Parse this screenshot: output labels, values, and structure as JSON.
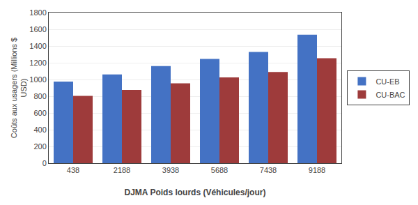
{
  "chart_data": {
    "type": "bar",
    "xlabel": "DJMA Poids lourds (Véhicules/jour)",
    "ylabel": "Coûts aux usagers (Millions $\nUSD)",
    "categories": [
      "438",
      "2188",
      "3938",
      "5688",
      "7438",
      "9188"
    ],
    "series": [
      {
        "name": "CU-EB",
        "color": "#4472C4",
        "values": [
          975,
          1060,
          1160,
          1245,
          1330,
          1535
        ]
      },
      {
        "name": "CU-BAC",
        "color": "#9E3B3B",
        "values": [
          805,
          875,
          955,
          1025,
          1090,
          1255
        ]
      }
    ],
    "ylim": [
      0,
      1800
    ],
    "yticks": [
      0,
      200,
      400,
      600,
      800,
      1000,
      1200,
      1400,
      1600,
      1800
    ],
    "grid": true,
    "legend": "right"
  }
}
